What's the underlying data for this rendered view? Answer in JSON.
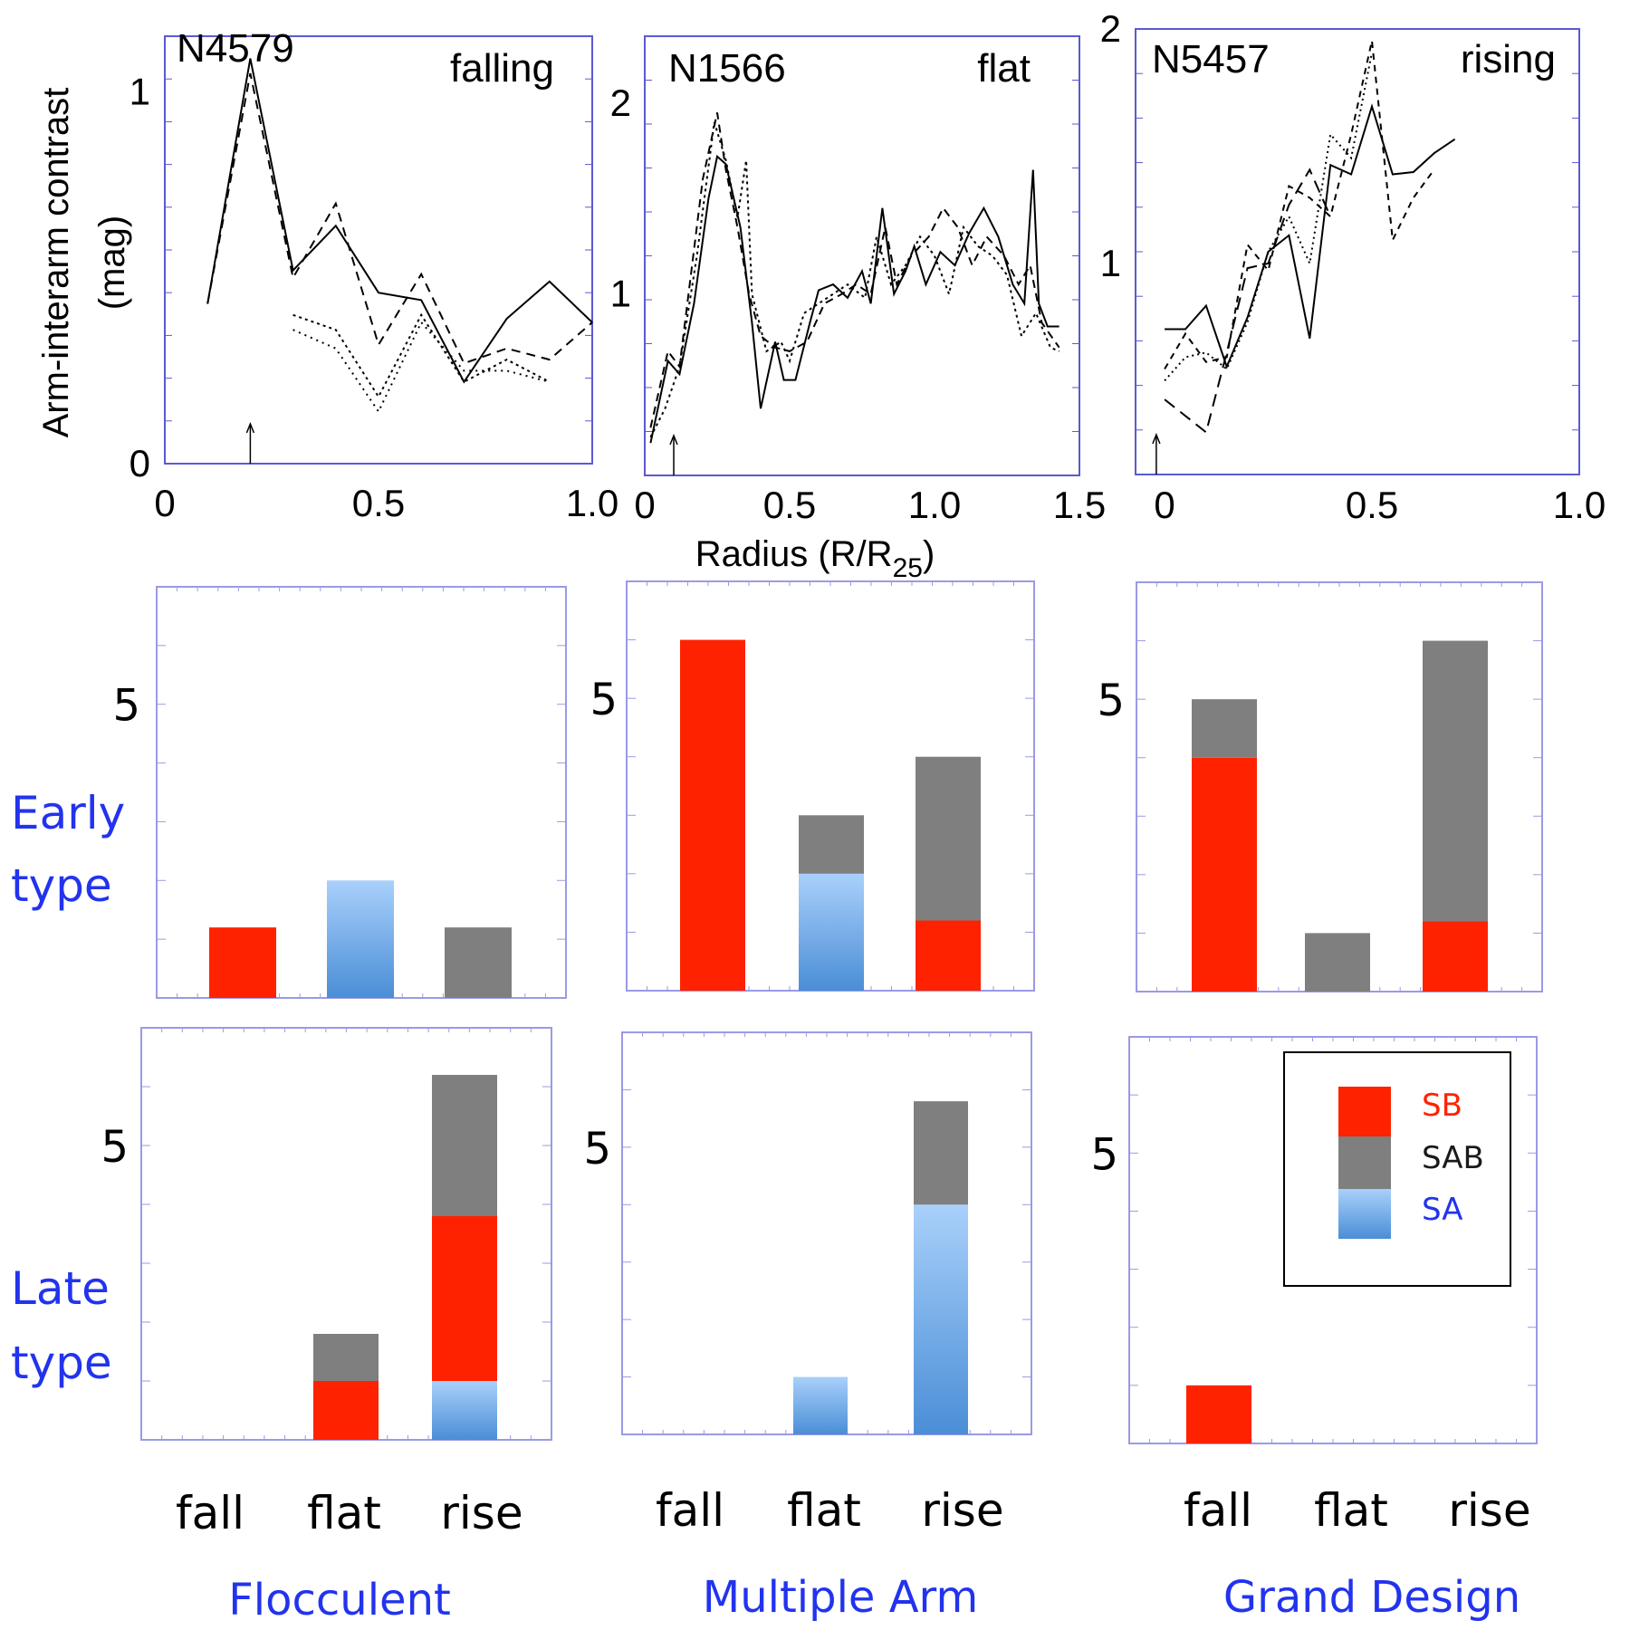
{
  "colors": {
    "frame": "#5a5ad2",
    "line": "#000000",
    "SB": "#ff2200",
    "SAB": "#7f7f7f",
    "SA_top": "#a9d0fb",
    "SA_bottom": "#4a8ed6",
    "label_blue": "#2233ee"
  },
  "top_panels": {
    "shared_xlabel": "Radius (R/R",
    "shared_xlabel_sub": "25",
    "shared_xlabel_close": ")",
    "ylabel_line1": "Arm-interarm contrast",
    "ylabel_line2": "(mag)"
  },
  "chart_data": [
    {
      "type": "line",
      "galaxy": "N4579",
      "profile": "falling",
      "xlim": [
        0,
        1.0
      ],
      "ylim": [
        0,
        1.15
      ],
      "xticks": [
        {
          "v": 0,
          "t": "0"
        },
        {
          "v": 0.5,
          "t": "0.5"
        },
        {
          "v": 1.0,
          "t": "1.0"
        }
      ],
      "yticks": [
        {
          "v": 0,
          "t": "0"
        },
        {
          "v": 1,
          "t": "1"
        }
      ],
      "arrow_x": 0.2,
      "series": [
        {
          "name": "solid",
          "dash": "none",
          "points": [
            [
              0.1,
              0.43
            ],
            [
              0.2,
              1.09
            ],
            [
              0.3,
              0.52
            ],
            [
              0.4,
              0.64
            ],
            [
              0.5,
              0.46
            ],
            [
              0.6,
              0.44
            ],
            [
              0.7,
              0.22
            ],
            [
              0.8,
              0.39
            ],
            [
              0.9,
              0.49
            ],
            [
              1.0,
              0.38
            ]
          ]
        },
        {
          "name": "dashed",
          "dash": "10,7",
          "points": [
            [
              0.1,
              0.43
            ],
            [
              0.2,
              1.05
            ],
            [
              0.3,
              0.5
            ],
            [
              0.4,
              0.7
            ],
            [
              0.5,
              0.32
            ],
            [
              0.6,
              0.51
            ],
            [
              0.7,
              0.27
            ],
            [
              0.8,
              0.31
            ],
            [
              0.9,
              0.28
            ],
            [
              1.0,
              0.38
            ]
          ]
        },
        {
          "name": "dotted-upper",
          "dash": "3,4",
          "points": [
            [
              0.3,
              0.4
            ],
            [
              0.4,
              0.36
            ],
            [
              0.5,
              0.18
            ],
            [
              0.6,
              0.4
            ],
            [
              0.7,
              0.22
            ],
            [
              0.8,
              0.28
            ],
            [
              0.9,
              0.22
            ]
          ]
        },
        {
          "name": "dotted-lower",
          "dash": "2,5",
          "points": [
            [
              0.3,
              0.36
            ],
            [
              0.4,
              0.31
            ],
            [
              0.5,
              0.14
            ],
            [
              0.6,
              0.38
            ],
            [
              0.7,
              0.25
            ],
            [
              0.8,
              0.25
            ],
            [
              0.9,
              0.22
            ]
          ]
        }
      ]
    },
    {
      "type": "line",
      "galaxy": "N1566",
      "profile": "flat",
      "xlim": [
        0,
        1.5
      ],
      "ylim": [
        0.05,
        2.35
      ],
      "xticks": [
        {
          "v": 0,
          "t": "0"
        },
        {
          "v": 0.5,
          "t": "0.5"
        },
        {
          "v": 1.0,
          "t": "1.0"
        },
        {
          "v": 1.5,
          "t": "1.5"
        }
      ],
      "yticks": [
        {
          "v": 1,
          "t": "1"
        },
        {
          "v": 2,
          "t": "2"
        }
      ],
      "arrow_x": 0.1,
      "series": [
        {
          "name": "solid",
          "dash": "none",
          "points": [
            [
              0.02,
              0.22
            ],
            [
              0.08,
              0.65
            ],
            [
              0.12,
              0.58
            ],
            [
              0.17,
              0.95
            ],
            [
              0.22,
              1.5
            ],
            [
              0.25,
              1.72
            ],
            [
              0.28,
              1.68
            ],
            [
              0.33,
              1.35
            ],
            [
              0.37,
              0.85
            ],
            [
              0.4,
              0.4
            ],
            [
              0.45,
              0.75
            ],
            [
              0.48,
              0.55
            ],
            [
              0.52,
              0.55
            ],
            [
              0.57,
              0.85
            ],
            [
              0.6,
              1.02
            ],
            [
              0.65,
              1.05
            ],
            [
              0.7,
              0.98
            ],
            [
              0.75,
              1.12
            ],
            [
              0.78,
              0.95
            ],
            [
              0.82,
              1.45
            ],
            [
              0.86,
              1.0
            ],
            [
              0.9,
              1.12
            ],
            [
              0.93,
              1.25
            ],
            [
              0.97,
              1.05
            ],
            [
              1.02,
              1.22
            ],
            [
              1.07,
              1.15
            ],
            [
              1.12,
              1.32
            ],
            [
              1.17,
              1.45
            ],
            [
              1.22,
              1.3
            ],
            [
              1.27,
              1.05
            ],
            [
              1.31,
              0.95
            ],
            [
              1.34,
              1.65
            ],
            [
              1.36,
              0.95
            ],
            [
              1.39,
              0.83
            ],
            [
              1.43,
              0.83
            ]
          ]
        },
        {
          "name": "dashed",
          "dash": "9,6",
          "points": [
            [
              0.02,
              0.3
            ],
            [
              0.08,
              0.7
            ],
            [
              0.12,
              0.62
            ],
            [
              0.2,
              1.6
            ],
            [
              0.25,
              1.95
            ],
            [
              0.28,
              1.65
            ],
            [
              0.32,
              1.35
            ],
            [
              0.36,
              1.0
            ],
            [
              0.4,
              0.78
            ],
            [
              0.45,
              0.72
            ],
            [
              0.5,
              0.7
            ],
            [
              0.56,
              0.75
            ],
            [
              0.62,
              0.95
            ],
            [
              0.68,
              1.0
            ],
            [
              0.73,
              1.05
            ],
            [
              0.78,
              1.0
            ],
            [
              0.83,
              1.35
            ],
            [
              0.87,
              1.05
            ],
            [
              0.92,
              1.2
            ],
            [
              0.98,
              1.3
            ],
            [
              1.03,
              1.45
            ],
            [
              1.08,
              1.35
            ],
            [
              1.13,
              1.15
            ],
            [
              1.18,
              1.3
            ],
            [
              1.24,
              1.2
            ],
            [
              1.29,
              1.05
            ],
            [
              1.33,
              1.15
            ],
            [
              1.37,
              0.85
            ],
            [
              1.43,
              0.72
            ]
          ]
        },
        {
          "name": "dotted",
          "dash": "3,4",
          "points": [
            [
              0.02,
              0.25
            ],
            [
              0.07,
              0.4
            ],
            [
              0.12,
              0.62
            ],
            [
              0.18,
              1.2
            ],
            [
              0.24,
              1.9
            ],
            [
              0.28,
              1.7
            ],
            [
              0.32,
              1.4
            ],
            [
              0.35,
              1.7
            ],
            [
              0.37,
              1.0
            ],
            [
              0.42,
              0.7
            ],
            [
              0.47,
              0.75
            ],
            [
              0.5,
              0.65
            ],
            [
              0.55,
              0.9
            ],
            [
              0.6,
              0.95
            ],
            [
              0.65,
              1.0
            ],
            [
              0.7,
              1.05
            ],
            [
              0.76,
              0.98
            ],
            [
              0.8,
              1.3
            ],
            [
              0.85,
              1.05
            ],
            [
              0.9,
              1.15
            ],
            [
              0.95,
              1.3
            ],
            [
              1.0,
              1.2
            ],
            [
              1.05,
              1.0
            ],
            [
              1.1,
              1.35
            ],
            [
              1.15,
              1.25
            ],
            [
              1.2,
              1.2
            ],
            [
              1.25,
              1.1
            ],
            [
              1.3,
              0.78
            ],
            [
              1.35,
              0.9
            ],
            [
              1.4,
              0.72
            ],
            [
              1.43,
              0.7
            ]
          ]
        }
      ]
    },
    {
      "type": "line",
      "galaxy": "N5457",
      "profile": "rising",
      "xlim": [
        -0.07,
        1.0
      ],
      "ylim": [
        0.1,
        2.0
      ],
      "xticks": [
        {
          "v": 0,
          "t": "0"
        },
        {
          "v": 0.5,
          "t": "0.5"
        },
        {
          "v": 1.0,
          "t": "1.0"
        }
      ],
      "yticks": [
        {
          "v": 1,
          "t": "1"
        },
        {
          "v": 2,
          "t": "2"
        }
      ],
      "arrow_x": -0.02,
      "series": [
        {
          "name": "solid",
          "dash": "none",
          "points": [
            [
              0.0,
              0.72
            ],
            [
              0.05,
              0.72
            ],
            [
              0.1,
              0.82
            ],
            [
              0.15,
              0.56
            ],
            [
              0.2,
              0.77
            ],
            [
              0.25,
              1.05
            ],
            [
              0.3,
              1.12
            ],
            [
              0.35,
              0.68
            ],
            [
              0.4,
              1.42
            ],
            [
              0.45,
              1.38
            ],
            [
              0.5,
              1.67
            ],
            [
              0.55,
              1.38
            ],
            [
              0.6,
              1.39
            ],
            [
              0.65,
              1.47
            ],
            [
              0.7,
              1.53
            ]
          ]
        },
        {
          "name": "dashed-short",
          "dash": "7,6",
          "points": [
            [
              0.0,
              0.55
            ],
            [
              0.05,
              0.7
            ],
            [
              0.1,
              0.58
            ],
            [
              0.15,
              0.6
            ],
            [
              0.2,
              1.08
            ],
            [
              0.25,
              0.97
            ],
            [
              0.3,
              1.33
            ],
            [
              0.35,
              1.28
            ],
            [
              0.4,
              1.2
            ],
            [
              0.45,
              1.55
            ],
            [
              0.5,
              1.95
            ],
            [
              0.55,
              1.1
            ],
            [
              0.6,
              1.28
            ],
            [
              0.65,
              1.4
            ]
          ]
        },
        {
          "name": "dashed-long",
          "dash": "14,8",
          "points": [
            [
              0.0,
              0.42
            ],
            [
              0.1,
              0.28
            ],
            [
              0.15,
              0.62
            ],
            [
              0.2,
              0.98
            ],
            [
              0.25,
              1.0
            ],
            [
              0.3,
              1.25
            ],
            [
              0.35,
              1.4
            ],
            [
              0.4,
              1.2
            ]
          ]
        },
        {
          "name": "dotted",
          "dash": "2,4",
          "points": [
            [
              0.0,
              0.5
            ],
            [
              0.05,
              0.6
            ],
            [
              0.1,
              0.62
            ],
            [
              0.15,
              0.55
            ],
            [
              0.2,
              0.75
            ],
            [
              0.25,
              1.05
            ],
            [
              0.3,
              1.2
            ],
            [
              0.35,
              1.0
            ],
            [
              0.4,
              1.55
            ],
            [
              0.45,
              1.45
            ],
            [
              0.5,
              1.9
            ]
          ]
        }
      ]
    },
    {
      "type": "bar",
      "stacked": true,
      "panel": "early-flocculent",
      "categories": [
        "fall",
        "flat",
        "rise"
      ],
      "ylim": [
        0,
        7
      ],
      "ytick_label": "5",
      "series": [
        {
          "name": "SA",
          "values": [
            0,
            2,
            0
          ]
        },
        {
          "name": "SB",
          "values": [
            1.2,
            0,
            0
          ]
        },
        {
          "name": "SAB",
          "values": [
            0,
            0,
            1.2
          ]
        }
      ]
    },
    {
      "type": "bar",
      "stacked": true,
      "panel": "early-multiple-arm",
      "categories": [
        "fall",
        "flat",
        "rise"
      ],
      "ylim": [
        0,
        7
      ],
      "ytick_label": "5",
      "series": [
        {
          "name": "SA",
          "values": [
            0,
            2,
            0
          ]
        },
        {
          "name": "SB",
          "values": [
            6,
            0,
            1.2
          ]
        },
        {
          "name": "SAB",
          "values": [
            0,
            1,
            2.8
          ]
        }
      ]
    },
    {
      "type": "bar",
      "stacked": true,
      "panel": "early-grand-design",
      "categories": [
        "fall",
        "flat",
        "rise"
      ],
      "ylim": [
        0,
        7
      ],
      "ytick_label": "5",
      "series": [
        {
          "name": "SA",
          "values": [
            0,
            0,
            0
          ]
        },
        {
          "name": "SB",
          "values": [
            4,
            0,
            1.2
          ]
        },
        {
          "name": "SAB",
          "values": [
            1,
            1,
            4.8
          ]
        }
      ]
    },
    {
      "type": "bar",
      "stacked": true,
      "panel": "late-flocculent",
      "categories": [
        "fall",
        "flat",
        "rise"
      ],
      "ylim": [
        0,
        7
      ],
      "ytick_label": "5",
      "series": [
        {
          "name": "SA",
          "values": [
            0,
            0,
            1
          ]
        },
        {
          "name": "SB",
          "values": [
            0,
            1,
            2.8
          ]
        },
        {
          "name": "SAB",
          "values": [
            0,
            0.8,
            2.4
          ]
        }
      ]
    },
    {
      "type": "bar",
      "stacked": true,
      "panel": "late-multiple-arm",
      "categories": [
        "fall",
        "flat",
        "rise"
      ],
      "ylim": [
        0,
        7
      ],
      "ytick_label": "5",
      "series": [
        {
          "name": "SA",
          "values": [
            0,
            1,
            4
          ]
        },
        {
          "name": "SB",
          "values": [
            0,
            0,
            0
          ]
        },
        {
          "name": "SAB",
          "values": [
            0,
            0,
            1.8
          ]
        }
      ]
    },
    {
      "type": "bar",
      "stacked": true,
      "panel": "late-grand-design",
      "categories": [
        "fall",
        "flat",
        "rise"
      ],
      "ylim": [
        0,
        7
      ],
      "ytick_label": "5",
      "series": [
        {
          "name": "SA",
          "values": [
            0,
            0,
            0
          ]
        },
        {
          "name": "SB",
          "values": [
            1,
            0,
            0
          ]
        },
        {
          "name": "SAB",
          "values": [
            0,
            0,
            0
          ]
        }
      ]
    }
  ],
  "bar_panels": {
    "row_labels": [
      {
        "line1": "Early",
        "line2": "type"
      },
      {
        "line1": "Late",
        "line2": "type"
      }
    ],
    "column_labels": [
      "Flocculent",
      "Multiple Arm",
      "Grand Design"
    ],
    "category_labels": [
      "fall",
      "flat",
      "rise"
    ],
    "legend": [
      {
        "label": "SB",
        "color": "#ff2200"
      },
      {
        "label": "SAB",
        "color": "#1a1a1a"
      },
      {
        "label": "SA",
        "color": "#2233ee"
      }
    ]
  }
}
